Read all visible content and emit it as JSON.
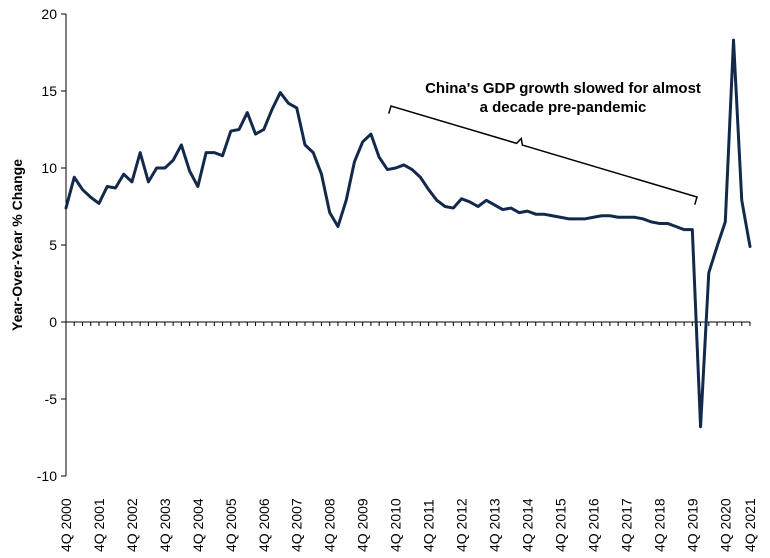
{
  "chart_data": {
    "type": "line",
    "title": "",
    "xlabel": "",
    "ylabel": "Year-Over-Year % Change",
    "ylim": [
      -10,
      20
    ],
    "yticks": [
      -10,
      -5,
      0,
      5,
      10,
      15,
      20
    ],
    "grid": false,
    "line_color": "#13294b",
    "x_tick_labels": [
      "4Q 2000",
      "4Q 2001",
      "4Q 2002",
      "4Q 2003",
      "4Q 2004",
      "4Q 2005",
      "4Q 2006",
      "4Q 2007",
      "4Q 2008",
      "4Q 2009",
      "4Q 2010",
      "4Q 2011",
      "4Q 2012",
      "4Q 2013",
      "4Q 2014",
      "4Q 2015",
      "4Q 2016",
      "4Q 2017",
      "4Q 2018",
      "4Q 2019",
      "4Q 2020",
      "4Q 2021"
    ],
    "series": [
      {
        "x_start": "4Q 2000",
        "frequency": "quarterly",
        "values": [
          7.4,
          9.4,
          8.6,
          8.1,
          7.7,
          8.8,
          8.7,
          9.6,
          9.1,
          11.0,
          9.1,
          10.0,
          10.0,
          10.5,
          11.5,
          9.8,
          8.8,
          11.0,
          11.0,
          10.8,
          12.4,
          12.5,
          13.6,
          12.2,
          12.5,
          13.8,
          14.9,
          14.2,
          13.9,
          11.5,
          11.0,
          9.6,
          7.1,
          6.2,
          7.9,
          10.4,
          11.7,
          12.2,
          10.7,
          9.9,
          10.0,
          10.2,
          9.9,
          9.4,
          8.6,
          7.9,
          7.5,
          7.4,
          8.0,
          7.8,
          7.5,
          7.9,
          7.6,
          7.3,
          7.4,
          7.1,
          7.2,
          7.0,
          7.0,
          6.9,
          6.8,
          6.7,
          6.7,
          6.7,
          6.8,
          6.9,
          6.9,
          6.8,
          6.8,
          6.8,
          6.7,
          6.5,
          6.4,
          6.4,
          6.2,
          6.0,
          6.0,
          -6.8,
          3.2,
          4.9,
          6.5,
          18.3,
          7.9,
          4.9
        ]
      }
    ],
    "annotation": {
      "lines": [
        "China's GDP growth slowed for almost",
        "a decade pre-pandemic"
      ]
    }
  }
}
